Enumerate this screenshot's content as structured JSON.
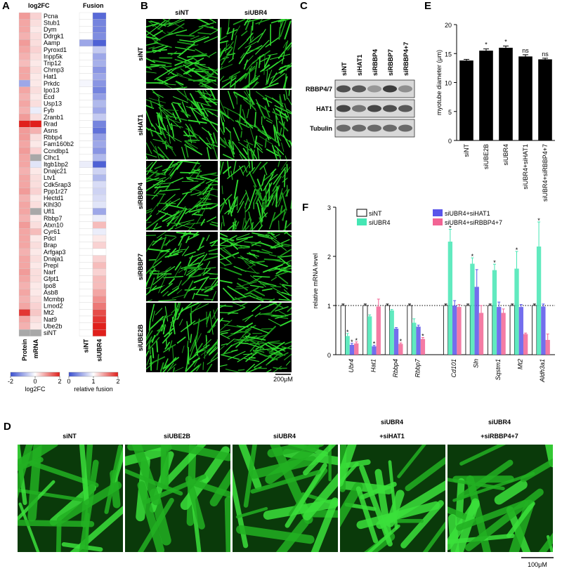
{
  "chart_data": [
    {
      "type": "heatmap",
      "panel": "A",
      "title_left": "log2FC",
      "title_right": "Fusion",
      "genes": [
        "Pcna",
        "Stub1",
        "Dym",
        "Ddrgk1",
        "Aamp",
        "Pyroxd1",
        "Inpp5k",
        "Trip12",
        "Chmp3",
        "Hat1",
        "Prkdc",
        "Ipo13",
        "Ecd",
        "Usp13",
        "Fyb",
        "Zranb1",
        "Rrad",
        "Asns",
        "Rbbp4",
        "Fam160b2",
        "Ccndbp1",
        "Clhc1",
        "Itgb1bp2",
        "Dnajc21",
        "Ltv1",
        "Cdk5rap3",
        "Ppp1r27",
        "Hectd1",
        "Klhl30",
        "Ufl1",
        "Rbbp7",
        "Atxn10",
        "Cyr61",
        "Pdcl",
        "Brap",
        "Arfgap3",
        "Dnaja1",
        "Prepl",
        "Narf",
        "Gfpt1",
        "Ipo8",
        "Asb8",
        "Mcmbp",
        "Lmod2",
        "Mt2",
        "Nat9",
        "Ube2b",
        "siNT"
      ],
      "log2fc_columns": [
        "Protein",
        "mRNA"
      ],
      "fusion_columns": [
        "siNT",
        "siUBR4"
      ],
      "log2fc": [
        [
          0.9,
          0.4
        ],
        [
          0.8,
          0.3
        ],
        [
          0.8,
          0.2
        ],
        [
          0.7,
          0.3
        ],
        [
          0.9,
          0.3
        ],
        [
          0.8,
          0.4
        ],
        [
          0.7,
          0.3
        ],
        [
          0.6,
          0.2
        ],
        [
          0.8,
          0.3
        ],
        [
          0.8,
          0.2
        ],
        [
          -1.0,
          0.2
        ],
        [
          0.8,
          0.3
        ],
        [
          0.7,
          0.2
        ],
        [
          0.8,
          0.3
        ],
        [
          0.7,
          -0.2
        ],
        [
          0.9,
          0.3
        ],
        [
          2.0,
          2.0
        ],
        [
          0.9,
          0.7
        ],
        [
          0.9,
          0.3
        ],
        [
          0.8,
          0.2
        ],
        [
          0.9,
          0.4
        ],
        [
          0.8,
          null
        ],
        [
          0.8,
          -0.3
        ],
        [
          0.7,
          0.2
        ],
        [
          0.8,
          0.3
        ],
        [
          0.8,
          0.3
        ],
        [
          0.9,
          0.4
        ],
        [
          0.7,
          0.2
        ],
        [
          0.8,
          0.3
        ],
        [
          0.8,
          null
        ],
        [
          0.7,
          0.2
        ],
        [
          0.9,
          0.3
        ],
        [
          0.8,
          0.6
        ],
        [
          0.8,
          0.2
        ],
        [
          0.8,
          0.3
        ],
        [
          0.7,
          0.2
        ],
        [
          0.8,
          0.3
        ],
        [
          0.8,
          0.2
        ],
        [
          0.9,
          0.3
        ],
        [
          0.8,
          0.3
        ],
        [
          0.7,
          0.2
        ],
        [
          0.8,
          0.2
        ],
        [
          0.7,
          0.3
        ],
        [
          0.8,
          0.4
        ],
        [
          1.8,
          0.5
        ],
        [
          0.8,
          0.3
        ],
        [
          0.7,
          0.2
        ],
        [
          null,
          null
        ]
      ],
      "fusion": [
        [
          1.0,
          0.15
        ],
        [
          1.0,
          0.3
        ],
        [
          1.0,
          0.3
        ],
        [
          1.0,
          0.35
        ],
        [
          0.5,
          0.1
        ],
        [
          1.0,
          0.7
        ],
        [
          1.0,
          0.5
        ],
        [
          1.0,
          0.55
        ],
        [
          1.0,
          0.4
        ],
        [
          1.0,
          0.5
        ],
        [
          0.95,
          0.4
        ],
        [
          1.0,
          0.3
        ],
        [
          1.0,
          0.45
        ],
        [
          1.0,
          0.6
        ],
        [
          1.0,
          0.5
        ],
        [
          1.0,
          0.7
        ],
        [
          1.0,
          0.3
        ],
        [
          1.0,
          0.2
        ],
        [
          1.0,
          0.45
        ],
        [
          1.0,
          0.5
        ],
        [
          1.0,
          0.4
        ],
        [
          1.0,
          0.6
        ],
        [
          0.9,
          0.1
        ],
        [
          1.0,
          0.75
        ],
        [
          1.0,
          0.6
        ],
        [
          1.0,
          0.8
        ],
        [
          1.0,
          0.75
        ],
        [
          1.0,
          0.8
        ],
        [
          1.0,
          0.85
        ],
        [
          1.0,
          0.5
        ],
        [
          1.0,
          0.9
        ],
        [
          1.0,
          1.3
        ],
        [
          1.0,
          0.9
        ],
        [
          1.0,
          1.1
        ],
        [
          1.0,
          1.2
        ],
        [
          1.0,
          1.0
        ],
        [
          1.0,
          1.2
        ],
        [
          1.0,
          1.3
        ],
        [
          1.0,
          1.2
        ],
        [
          1.0,
          1.3
        ],
        [
          1.0,
          1.3
        ],
        [
          1.0,
          1.4
        ],
        [
          1.0,
          1.5
        ],
        [
          1.0,
          1.6
        ],
        [
          1.0,
          1.8
        ],
        [
          1.0,
          1.9
        ],
        [
          1.0,
          2.0
        ],
        [
          1.0,
          2.0
        ]
      ],
      "missing_color": "#a8a8a8",
      "log2fc_colorbar": {
        "label": "log2FC",
        "lim": [
          -2,
          2
        ],
        "ticks": [
          -2,
          0,
          2
        ],
        "colors": [
          "#3a4fd0",
          "#ffffff",
          "#e0201c"
        ]
      },
      "fusion_colorbar": {
        "label": "relative fusion",
        "lim": [
          0,
          2
        ],
        "ticks": [
          0,
          1,
          2
        ],
        "colors": [
          "#3a4fd0",
          "#ffffff",
          "#e0201c"
        ]
      }
    },
    {
      "type": "bar",
      "panel": "E",
      "ylabel": "myotube diameter (μm)",
      "categories": [
        "siNT",
        "siUBE2B",
        "siUBR4",
        "siUBR4+siHAT1",
        "siUBR4+siRBBP4+7"
      ],
      "values": [
        13.8,
        15.5,
        16.0,
        14.5,
        14.0
      ],
      "errors": [
        0.2,
        0.3,
        0.3,
        0.3,
        0.2
      ],
      "annotations": [
        null,
        "*",
        "*",
        "ns",
        "ns"
      ],
      "color": "#000000",
      "ylim": [
        0,
        20
      ],
      "yticks": [
        0,
        5,
        10,
        15,
        20
      ]
    },
    {
      "type": "grouped_bar",
      "panel": "F",
      "ylabel": "relative mRNA level",
      "categories": [
        "Ubr4",
        "Hat1",
        "Rbbp4",
        "Rbbp7",
        "Cd101",
        "Sln",
        "Sqstm1",
        "Mt2",
        "Aldh3a1"
      ],
      "ylim": [
        0,
        3
      ],
      "yticks": [
        0,
        1,
        2,
        3
      ],
      "reference_line": 1,
      "series": [
        {
          "name": "siNT",
          "color": "#ffffff",
          "values": [
            1,
            1,
            1,
            1,
            1,
            1,
            1,
            1,
            1
          ],
          "errors": [
            0.03,
            0.03,
            0.03,
            0.03,
            0.03,
            0.03,
            0.03,
            0.03,
            0.03
          ],
          "annotations": [
            null,
            null,
            null,
            null,
            null,
            null,
            null,
            null,
            null
          ]
        },
        {
          "name": "siUBR4",
          "color": "#45e6b4",
          "values": [
            0.38,
            0.78,
            0.9,
            0.65,
            2.3,
            1.85,
            1.72,
            1.75,
            2.2
          ],
          "errors": [
            0.05,
            0.03,
            0.02,
            0.08,
            0.25,
            0.12,
            0.12,
            0.35,
            0.5
          ],
          "annotations": [
            "*",
            null,
            null,
            null,
            "*",
            "*",
            "*",
            "*",
            "*"
          ]
        },
        {
          "name": "siUBR4+siHAT1",
          "color": "#5a55ea",
          "values": [
            0.2,
            0.17,
            0.53,
            0.57,
            1.0,
            1.38,
            0.97,
            0.97,
            0.98
          ],
          "errors": [
            0.03,
            0.02,
            0.02,
            0.03,
            0.1,
            0.35,
            0.1,
            0.05,
            0.05
          ],
          "annotations": [
            "*",
            "*",
            null,
            null,
            null,
            null,
            null,
            null,
            null
          ]
        },
        {
          "name": "siUBR4+siRBBP4+7",
          "color": "#f26494",
          "values": [
            0.23,
            0.98,
            0.22,
            0.32,
            0.97,
            0.85,
            0.85,
            0.42,
            0.3
          ],
          "errors": [
            0.03,
            0.15,
            0.02,
            0.03,
            0.05,
            0.15,
            0.08,
            0.02,
            0.12
          ],
          "annotations": [
            "*",
            null,
            "*",
            "*",
            null,
            null,
            null,
            null,
            null
          ]
        }
      ]
    }
  ],
  "micrographs_B": {
    "panel": "B",
    "columns": [
      "siNT",
      "siUBR4"
    ],
    "rows": [
      "siNT",
      "siHAT1",
      "siRBBP4",
      "siRBBP7",
      "siUBE2B"
    ],
    "scale_bar": "200μM"
  },
  "blot_C": {
    "panel": "C",
    "lanes": [
      "siNT",
      "siHAT1",
      "siRBBP4",
      "siRBBP7",
      "siRBBP4+7"
    ],
    "rows": [
      "RBBP4/7",
      "HAT1",
      "Tubulin"
    ]
  },
  "micrographs_D": {
    "panel": "D",
    "labels": [
      [
        "siNT"
      ],
      [
        "siUBE2B"
      ],
      [
        "siUBR4"
      ],
      [
        "siUBR4",
        "+siHAT1"
      ],
      [
        "siUBR4",
        "+siRBBP4+7"
      ]
    ],
    "scale_bar": "100μM"
  }
}
